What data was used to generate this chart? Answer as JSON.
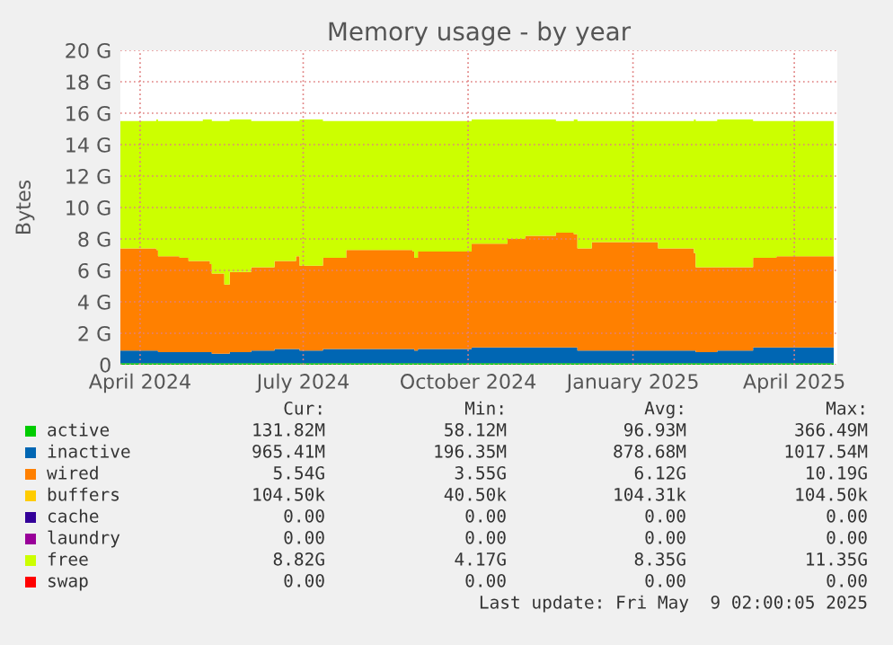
{
  "chart_data": {
    "type": "area",
    "stacked": true,
    "title": "Memory usage - by year",
    "ylabel": "Bytes",
    "x": [
      "2024-03-21",
      "2024-04-10",
      "2024-04-11",
      "2024-04-23",
      "2024-04-28",
      "2024-05-06",
      "2024-05-10",
      "2024-05-11",
      "2024-05-16",
      "2024-05-18",
      "2024-05-21",
      "2024-06-02",
      "2024-06-15",
      "2024-06-27",
      "2024-06-29",
      "2024-07-12",
      "2024-07-25",
      "2024-08-31",
      "2024-09-01",
      "2024-09-03",
      "2024-10-03",
      "2024-10-23",
      "2024-11-02",
      "2024-11-19",
      "2024-11-29",
      "2024-12-01",
      "2024-12-09",
      "2025-01-08",
      "2025-01-15",
      "2025-02-04",
      "2025-02-05",
      "2025-02-17",
      "2025-03-09",
      "2025-03-22",
      "2025-04-08",
      "2025-04-23"
    ],
    "series": [
      {
        "name": "active",
        "color": "#00cc00",
        "values": [
          0.1,
          0.1,
          0.1,
          0.1,
          0.1,
          0.1,
          0.1,
          0.1,
          0.1,
          0.1,
          0.1,
          0.1,
          0.1,
          0.1,
          0.1,
          0.1,
          0.1,
          0.1,
          0.1,
          0.1,
          0.1,
          0.1,
          0.1,
          0.1,
          0.1,
          0.1,
          0.1,
          0.1,
          0.1,
          0.1,
          0.1,
          0.1,
          0.1,
          0.1,
          0.1,
          0.1
        ]
      },
      {
        "name": "inactive",
        "color": "#0066b3",
        "values": [
          0.8,
          0.8,
          0.7,
          0.7,
          0.7,
          0.7,
          0.7,
          0.6,
          0.6,
          0.6,
          0.7,
          0.8,
          0.9,
          0.9,
          0.8,
          0.9,
          0.9,
          0.9,
          0.8,
          0.9,
          1.0,
          1.0,
          1.0,
          1.0,
          1.0,
          0.8,
          0.8,
          0.8,
          0.8,
          0.8,
          0.7,
          0.8,
          1.0,
          1.0,
          1.0,
          1.0
        ]
      },
      {
        "name": "wired",
        "color": "#ff8000",
        "values": [
          6.5,
          6.4,
          6.1,
          6.0,
          5.8,
          5.8,
          5.6,
          5.1,
          5.1,
          4.4,
          5.1,
          5.3,
          5.6,
          5.9,
          5.4,
          5.8,
          6.3,
          6.2,
          5.9,
          6.2,
          6.6,
          6.9,
          7.1,
          7.3,
          7.2,
          6.5,
          6.9,
          6.9,
          6.5,
          6.2,
          5.4,
          5.3,
          5.7,
          5.8,
          5.8,
          5.6
        ]
      },
      {
        "name": "buffers",
        "color": "#ffcc00",
        "values": [
          null,
          null,
          null,
          null,
          null,
          null,
          null,
          null,
          null,
          null,
          null,
          null,
          null,
          null,
          null,
          null,
          null,
          null,
          null,
          null,
          null,
          null,
          null,
          null,
          null,
          null,
          null,
          null,
          null,
          null,
          null,
          null,
          null,
          null,
          null,
          null
        ]
      },
      {
        "name": "cache",
        "color": "#330099",
        "values": [
          null,
          null,
          null,
          null,
          null,
          null,
          null,
          null,
          null,
          null,
          null,
          null,
          null,
          null,
          null,
          null,
          null,
          null,
          null,
          null,
          null,
          null,
          null,
          null,
          null,
          null,
          null,
          null,
          null,
          null,
          null,
          null,
          null,
          null,
          null,
          null
        ]
      },
      {
        "name": "laundry",
        "color": "#990099",
        "values": [
          null,
          null,
          null,
          null,
          null,
          null,
          null,
          null,
          null,
          null,
          null,
          null,
          null,
          null,
          null,
          null,
          null,
          null,
          null,
          null,
          null,
          null,
          null,
          null,
          null,
          null,
          null,
          null,
          null,
          null,
          null,
          null,
          null,
          null,
          null,
          null
        ]
      },
      {
        "name": "free",
        "color": "#ccff00",
        "values": [
          8.1,
          8.3,
          8.6,
          8.7,
          8.9,
          9.0,
          9.2,
          9.7,
          9.7,
          10.4,
          9.7,
          9.3,
          8.9,
          8.6,
          9.3,
          8.7,
          8.2,
          8.3,
          8.7,
          8.3,
          7.9,
          7.6,
          7.4,
          7.1,
          7.3,
          8.1,
          7.7,
          7.7,
          8.1,
          8.5,
          9.3,
          9.4,
          8.7,
          8.6,
          8.6,
          8.8
        ]
      },
      {
        "name": "swap",
        "color": "#ff0000",
        "values": [
          null,
          null,
          null,
          null,
          null,
          null,
          null,
          null,
          null,
          null,
          null,
          null,
          null,
          null,
          null,
          null,
          null,
          null,
          null,
          null,
          null,
          null,
          null,
          null,
          null,
          null,
          null,
          null,
          null,
          null,
          null,
          null,
          null,
          null,
          null,
          null
        ]
      }
    ],
    "xlim": [
      "2024-03-21",
      "2025-04-25"
    ],
    "xticks": [
      {
        "value": "2024-04-01",
        "label": "April 2024"
      },
      {
        "value": "2024-07-01",
        "label": "July 2024"
      },
      {
        "value": "2024-10-01",
        "label": "October 2024"
      },
      {
        "value": "2025-01-01",
        "label": "January 2025"
      },
      {
        "value": "2025-04-01",
        "label": "April 2025"
      }
    ],
    "ylim": [
      0,
      20
    ],
    "yticks": [
      0,
      {
        "value": 2,
        "label": "2 G"
      },
      {
        "value": 4,
        "label": "4 G"
      },
      {
        "value": 6,
        "label": "6 G"
      },
      {
        "value": 8,
        "label": "8 G"
      },
      {
        "value": 10,
        "label": "10 G"
      },
      {
        "value": 12,
        "label": "12 G"
      },
      {
        "value": 14,
        "label": "14 G"
      },
      {
        "value": 16,
        "label": "16 G"
      },
      {
        "value": 18,
        "label": "18 G"
      },
      {
        "value": 20,
        "label": "20 G"
      }
    ],
    "grid": true,
    "legend": "bottom",
    "annotations": [
      "Cur:",
      "Min:",
      "Avg:",
      "Max:",
      "131.82M",
      "58.12M",
      "96.93M",
      "366.49M",
      "965.41M",
      "196.35M",
      "878.68M",
      "1017.54M",
      "5.54G",
      "3.55G",
      "6.12G",
      "10.19G",
      "104.50k",
      "40.50k",
      "104.31k",
      "104.50k",
      "0.00",
      "0.00",
      "0.00",
      "0.00",
      "0.00",
      "0.00",
      "0.00",
      "0.00",
      "8.82G",
      "4.17G",
      "8.35G",
      "11.35G",
      "0.00",
      "0.00",
      "0.00",
      "0.00",
      "Last update: Fri May  9 02:00:05 2025"
    ]
  }
}
